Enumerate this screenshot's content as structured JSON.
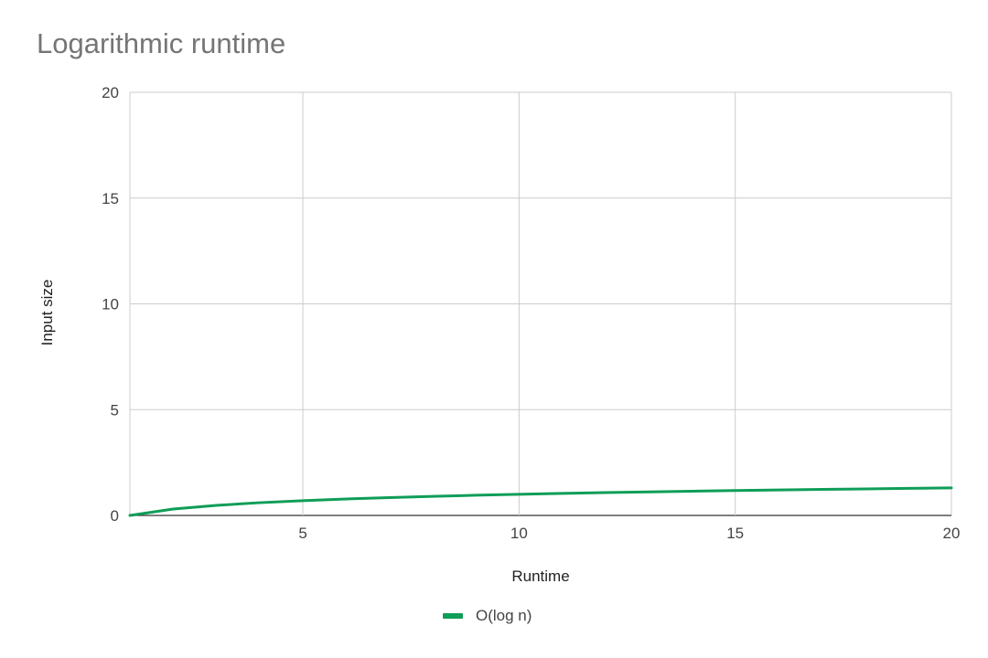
{
  "chart_data": {
    "type": "line",
    "title": "Logarithmic runtime",
    "xlabel": "Runtime",
    "ylabel": "Input size",
    "xlim": [
      1,
      20
    ],
    "ylim": [
      0,
      20
    ],
    "x_ticks": [
      5,
      10,
      15,
      20
    ],
    "y_ticks": [
      0,
      5,
      10,
      15,
      20
    ],
    "grid": true,
    "legend_position": "bottom",
    "series": [
      {
        "name": "O(log n)",
        "color": "#0f9d58",
        "x": [
          1,
          2,
          3,
          4,
          5,
          6,
          7,
          8,
          9,
          10,
          11,
          12,
          13,
          14,
          15,
          16,
          17,
          18,
          19,
          20
        ],
        "y": [
          0,
          0.301,
          0.477,
          0.602,
          0.699,
          0.778,
          0.845,
          0.903,
          0.954,
          1.0,
          1.041,
          1.079,
          1.114,
          1.146,
          1.176,
          1.204,
          1.23,
          1.255,
          1.279,
          1.301
        ]
      }
    ]
  }
}
